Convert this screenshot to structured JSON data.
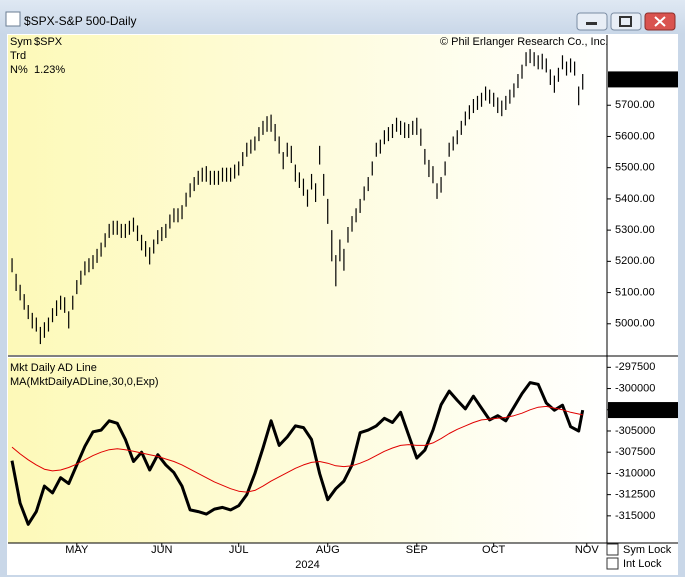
{
  "window": {
    "title": "$SPX-S&P 500-Daily"
  },
  "copyright": "© Phil Erlanger Research Co., Inc.",
  "info": [
    {
      "label": "Sym",
      "value": "$SPX"
    },
    {
      "label": "Trd"
    },
    {
      "label": "N%",
      "value": "1.23%"
    }
  ],
  "controls": [
    "Sym Lock",
    "Int Lock"
  ],
  "chart_data": [
    {
      "type": "ohlc",
      "color": "#000000",
      "xlim": [
        -1,
        147
      ],
      "ylim": [
        4900,
        5925
      ],
      "yticks": [
        {
          "value": 5000,
          "label": "5000.00"
        },
        {
          "value": 5100,
          "label": "5100.00"
        },
        {
          "value": 5200,
          "label": "5200.00"
        },
        {
          "value": 5300,
          "label": "5300.00"
        },
        {
          "value": 5400,
          "label": "5400.00"
        },
        {
          "value": 5500,
          "label": "5500.00"
        },
        {
          "value": 5600,
          "label": "5600.00"
        },
        {
          "value": 5700,
          "label": "5700.00"
        }
      ],
      "last_value": 5782.76,
      "x": [
        0,
        1,
        2,
        3,
        4,
        5,
        6,
        7,
        8,
        9,
        10,
        11,
        12,
        13,
        14,
        15,
        16,
        17,
        18,
        19,
        20,
        21,
        22,
        23,
        24,
        25,
        26,
        27,
        28,
        29,
        30,
        31,
        32,
        33,
        34,
        35,
        36,
        37,
        38,
        39,
        40,
        41,
        42,
        43,
        44,
        45,
        46,
        47,
        48,
        49,
        50,
        51,
        52,
        53,
        54,
        55,
        56,
        57,
        58,
        59,
        60,
        61,
        62,
        63,
        64,
        65,
        66,
        67,
        68,
        69,
        70,
        71,
        72,
        73,
        74,
        75,
        76,
        77,
        78,
        79,
        80,
        81,
        82,
        83,
        84,
        85,
        86,
        87,
        88,
        89,
        90,
        91,
        92,
        93,
        94,
        95,
        96,
        97,
        98,
        99,
        100,
        101,
        102,
        103,
        104,
        105,
        106,
        107,
        108,
        109,
        110,
        111,
        112,
        113,
        114,
        115,
        116,
        117,
        118,
        119,
        120,
        121,
        122,
        123,
        124,
        125,
        126,
        127,
        128,
        129,
        130,
        131,
        132,
        133,
        134,
        135,
        136,
        137,
        138,
        139,
        140,
        141
      ],
      "high": [
        5210,
        5160,
        5125,
        5095,
        5060,
        5035,
        5020,
        4990,
        5005,
        5020,
        5050,
        5075,
        5090,
        5085,
        5040,
        5090,
        5140,
        5170,
        5200,
        5210,
        5220,
        5240,
        5260,
        5290,
        5320,
        5330,
        5330,
        5320,
        5320,
        5330,
        5340,
        5315,
        5285,
        5265,
        5245,
        5270,
        5300,
        5310,
        5320,
        5350,
        5370,
        5370,
        5380,
        5420,
        5450,
        5470,
        5490,
        5500,
        5505,
        5490,
        5490,
        5490,
        5500,
        5500,
        5500,
        5510,
        5520,
        5550,
        5580,
        5590,
        5600,
        5630,
        5650,
        5665,
        5670,
        5640,
        5600,
        5550,
        5580,
        5570,
        5510,
        5485,
        5465,
        5430,
        5480,
        5450,
        5570,
        5480,
        5400,
        5300,
        5220,
        5270,
        5240,
        5310,
        5345,
        5370,
        5400,
        5440,
        5470,
        5520,
        5580,
        5590,
        5620,
        5630,
        5640,
        5660,
        5650,
        5645,
        5640,
        5650,
        5660,
        5625,
        5560,
        5525,
        5505,
        5450,
        5470,
        5520,
        5580,
        5600,
        5620,
        5650,
        5680,
        5700,
        5720,
        5730,
        5740,
        5760,
        5750,
        5740,
        5725,
        5715,
        5730,
        5750,
        5770,
        5800,
        5830,
        5870,
        5880,
        5870,
        5860,
        5865,
        5850,
        5815,
        5795,
        5820,
        5860,
        5840,
        5850,
        5840,
        5760,
        5800
      ],
      "low": [
        5165,
        5105,
        5075,
        5045,
        5015,
        4985,
        4975,
        4935,
        4955,
        4975,
        5005,
        5025,
        5045,
        5035,
        4985,
        5045,
        5095,
        5125,
        5155,
        5165,
        5175,
        5195,
        5215,
        5245,
        5275,
        5285,
        5285,
        5275,
        5275,
        5285,
        5295,
        5265,
        5235,
        5215,
        5190,
        5225,
        5255,
        5265,
        5275,
        5305,
        5325,
        5325,
        5335,
        5375,
        5405,
        5425,
        5445,
        5455,
        5455,
        5445,
        5445,
        5445,
        5455,
        5455,
        5455,
        5465,
        5475,
        5505,
        5535,
        5545,
        5555,
        5585,
        5605,
        5615,
        5615,
        5585,
        5545,
        5495,
        5535,
        5515,
        5455,
        5435,
        5410,
        5375,
        5430,
        5390,
        5510,
        5410,
        5320,
        5200,
        5120,
        5200,
        5170,
        5260,
        5295,
        5325,
        5355,
        5395,
        5425,
        5475,
        5535,
        5545,
        5575,
        5585,
        5595,
        5615,
        5605,
        5595,
        5595,
        5605,
        5605,
        5570,
        5510,
        5470,
        5450,
        5400,
        5420,
        5475,
        5535,
        5555,
        5575,
        5605,
        5635,
        5655,
        5675,
        5685,
        5695,
        5715,
        5705,
        5695,
        5675,
        5665,
        5685,
        5705,
        5725,
        5755,
        5785,
        5825,
        5835,
        5825,
        5815,
        5815,
        5805,
        5765,
        5740,
        5775,
        5815,
        5795,
        5805,
        5795,
        5700,
        5750
      ]
    },
    {
      "type": "line",
      "xlim": [
        -1,
        147
      ],
      "ylim": [
        -318200,
        -296400
      ],
      "yticks": [
        -297500,
        -300000,
        -302500,
        -305000,
        -307500,
        -310000,
        -312500,
        -315000
      ],
      "last_value": -302534,
      "xticks": [
        {
          "value": 16,
          "label": "MAY"
        },
        {
          "value": 37,
          "label": "JUN"
        },
        {
          "value": 56,
          "label": "JUL"
        },
        {
          "value": 78,
          "label": "AUG"
        },
        {
          "value": 100,
          "label": "SEP"
        },
        {
          "value": 119,
          "label": "OCT"
        },
        {
          "value": 142,
          "label": "NOV"
        }
      ],
      "xlabel": "2024",
      "x": [
        0,
        2,
        4,
        6,
        8,
        10,
        12,
        14,
        16,
        18,
        20,
        22,
        24,
        26,
        28,
        30,
        32,
        34,
        36,
        38,
        40,
        42,
        44,
        46,
        48,
        50,
        52,
        54,
        56,
        58,
        60,
        62,
        64,
        66,
        68,
        70,
        72,
        74,
        76,
        78,
        80,
        82,
        84,
        86,
        88,
        90,
        92,
        94,
        96,
        98,
        100,
        102,
        104,
        106,
        108,
        110,
        112,
        114,
        116,
        118,
        120,
        122,
        124,
        126,
        128,
        130,
        132,
        134,
        136,
        138,
        140,
        141
      ],
      "series": [
        {
          "name": "Mkt Daily AD Line",
          "color": "#000000",
          "values": [
            -308500,
            -313500,
            -316000,
            -314500,
            -311500,
            -312300,
            -310500,
            -311200,
            -309000,
            -306800,
            -305100,
            -304900,
            -303800,
            -304100,
            -306000,
            -308600,
            -307500,
            -309600,
            -307800,
            -309000,
            -309900,
            -311500,
            -314300,
            -314500,
            -314800,
            -314200,
            -314000,
            -314300,
            -313800,
            -312500,
            -310000,
            -307000,
            -303800,
            -306700,
            -305700,
            -304400,
            -304600,
            -306000,
            -310000,
            -313100,
            -311800,
            -310900,
            -309000,
            -305200,
            -304900,
            -304400,
            -303500,
            -304000,
            -302800,
            -305500,
            -308200,
            -307250,
            -304900,
            -301900,
            -300300,
            -301400,
            -302400,
            -300900,
            -302300,
            -303700,
            -303200,
            -303800,
            -302200,
            -300600,
            -299300,
            -299500,
            -301700,
            -302550,
            -301960,
            -304500,
            -305000,
            -302534
          ]
        },
        {
          "name": "MA(MktDailyADLine,30,0,Exp)",
          "color": "#e00000",
          "values": [
            -306900,
            -307700,
            -308400,
            -309000,
            -309500,
            -309700,
            -309600,
            -309300,
            -308900,
            -308400,
            -307900,
            -307500,
            -307200,
            -307100,
            -307200,
            -307400,
            -307600,
            -307800,
            -308000,
            -308300,
            -308600,
            -309000,
            -309500,
            -310000,
            -310500,
            -311000,
            -311400,
            -311800,
            -312100,
            -312200,
            -312000,
            -311500,
            -310900,
            -310400,
            -309900,
            -309400,
            -309000,
            -308700,
            -308600,
            -308800,
            -309100,
            -309200,
            -309100,
            -308800,
            -308400,
            -307900,
            -307400,
            -307000,
            -306700,
            -306600,
            -306700,
            -306700,
            -306400,
            -305900,
            -305300,
            -304800,
            -304400,
            -304000,
            -303700,
            -303600,
            -303500,
            -303400,
            -303200,
            -302900,
            -302500,
            -302200,
            -302100,
            -302300,
            -302500,
            -302800,
            -303000,
            -303100
          ]
        }
      ]
    }
  ]
}
